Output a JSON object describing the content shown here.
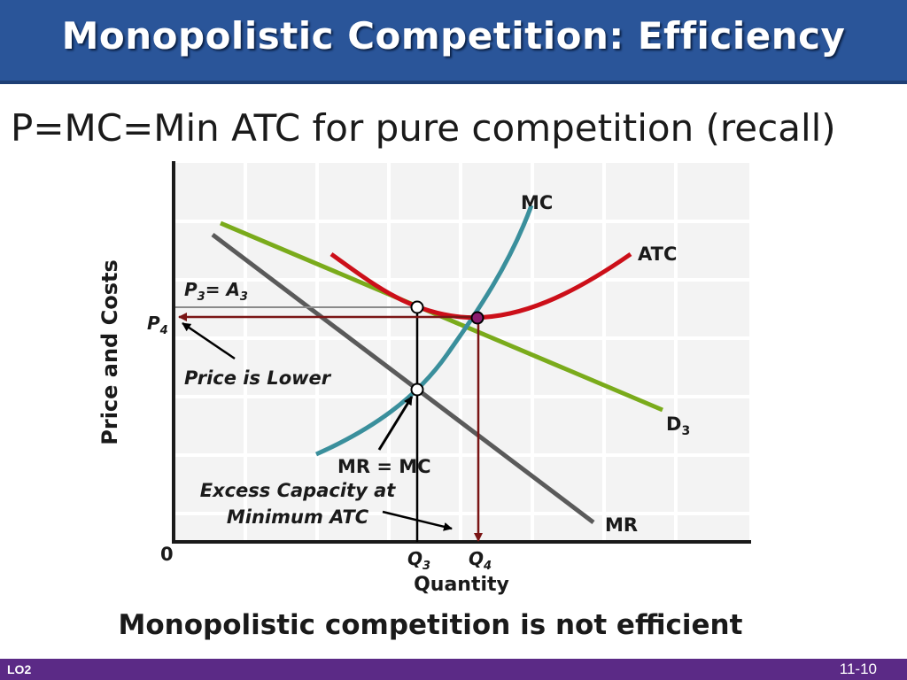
{
  "slide": {
    "title": "Monopolistic Competition: Efficiency",
    "subtitle": "P=MC=Min ATC for pure competition (recall)",
    "conclusion": "Monopolistic competition is not efficient",
    "footer_left": "LO2",
    "footer_right": "11-10"
  },
  "diagram": {
    "y_axis_label": "Price and Costs",
    "x_axis_label": "Quantity",
    "origin_label": "0",
    "curves": {
      "mc": "MC",
      "atc": "ATC",
      "demand_main": "D",
      "demand_sub": "3",
      "mr": "MR"
    },
    "price_label_1": {
      "main": "P",
      "sub": "3",
      "mid": "= A",
      "sub2": "3"
    },
    "price_label_2": {
      "main": "P",
      "sub": "4"
    },
    "qty_label_1": {
      "main": "Q",
      "sub": "3"
    },
    "qty_label_2": {
      "main": "Q",
      "sub": "4"
    },
    "annotations": {
      "price_lower": "Price is Lower",
      "mr_mc": "MR = MC",
      "excess_line1": "Excess Capacity at",
      "excess_line2": "Minimum ATC"
    },
    "colors": {
      "mc": "#3a8f9c",
      "atc": "#cc0f19",
      "demand": "#7aab1b",
      "mr": "#5a5a5a",
      "arrow": "#7a1515",
      "point_fill": "#8a1b6e"
    }
  }
}
